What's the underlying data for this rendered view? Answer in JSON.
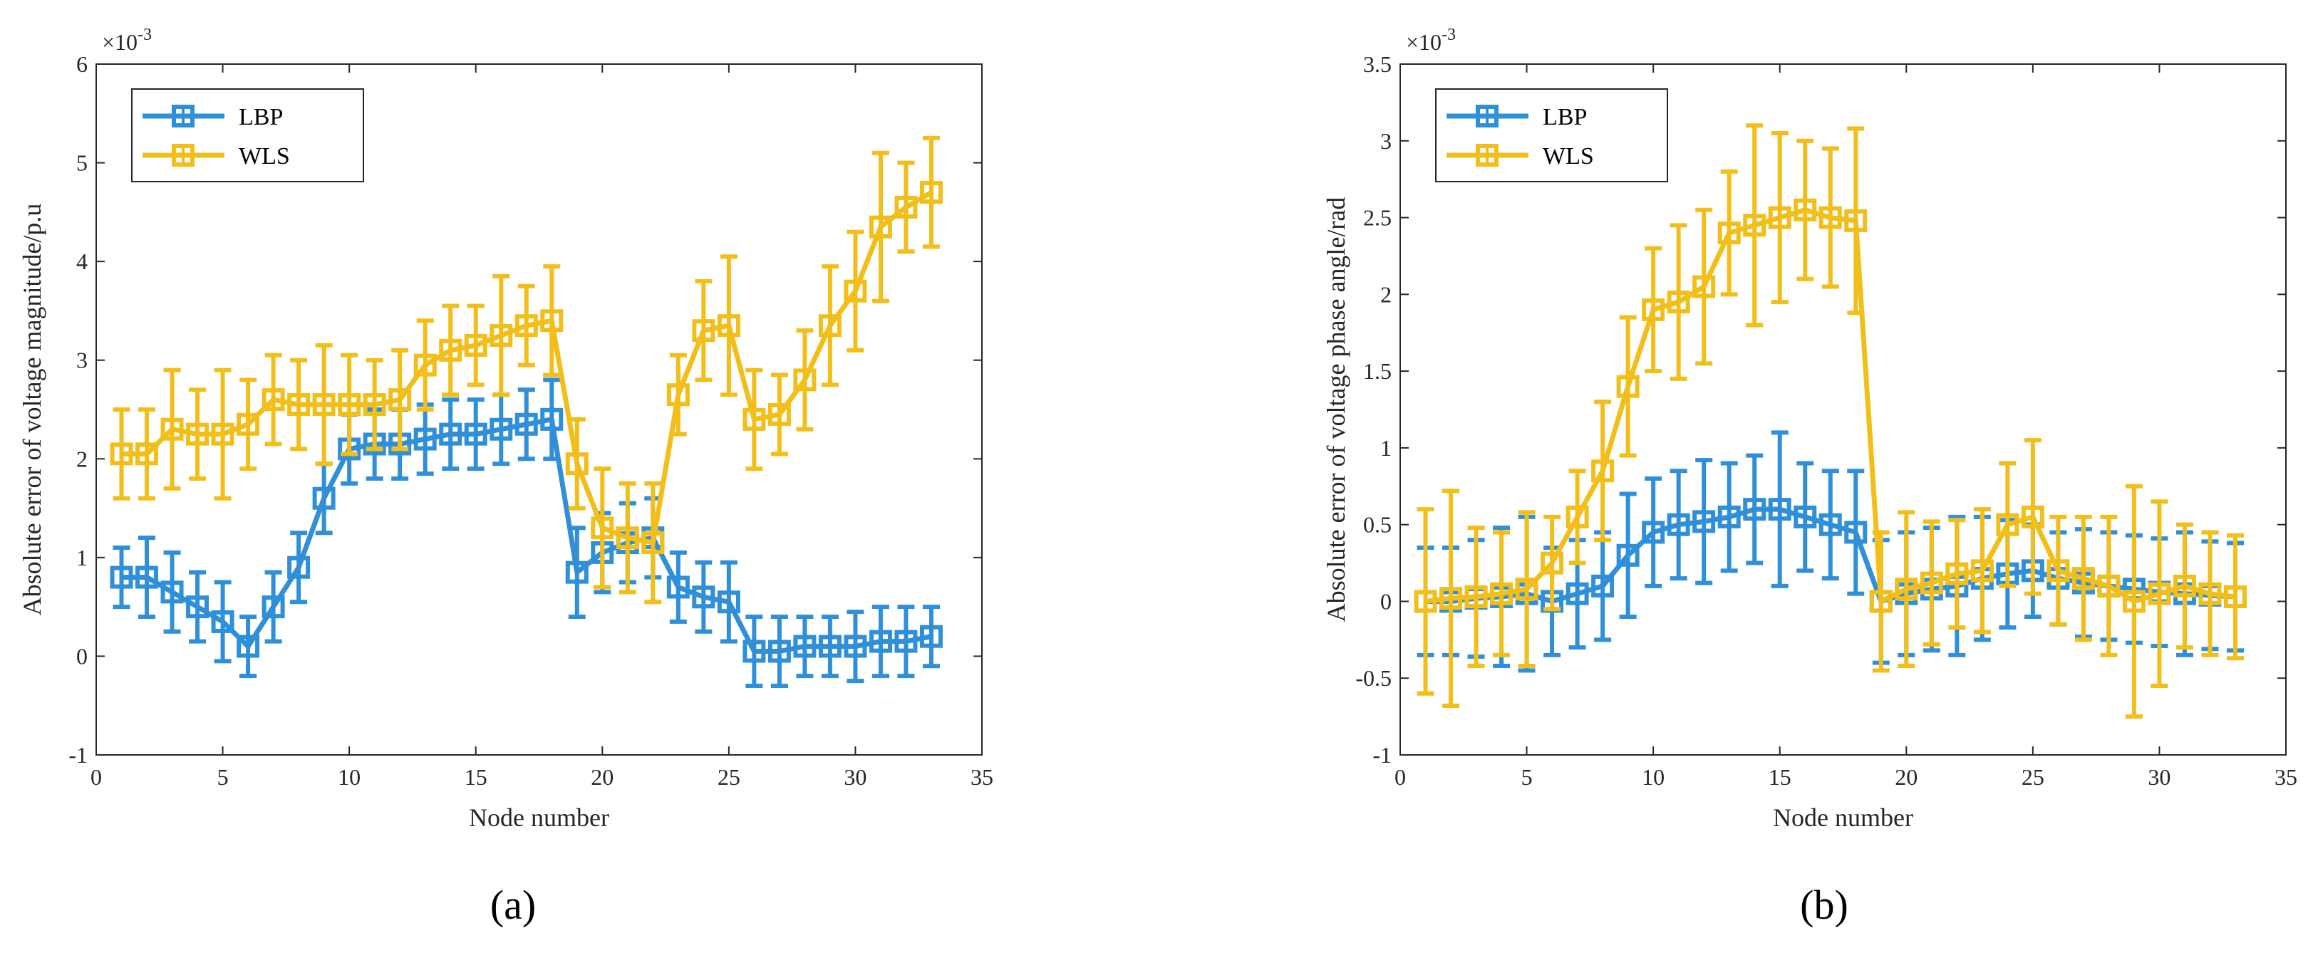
{
  "chart_data": [
    {
      "type": "line",
      "panel_caption": "a",
      "xlabel": "Node number",
      "ylabel": "Absolute error of voltage magnitude/p.u",
      "exponent_label": "×10^-3",
      "xlim": [
        0,
        35
      ],
      "ylim": [
        -1,
        6
      ],
      "xticks": [
        0,
        5,
        10,
        15,
        20,
        25,
        30,
        35
      ],
      "yticks": [
        -1,
        0,
        1,
        2,
        3,
        4,
        5,
        6
      ],
      "grid": false,
      "legend_position": "top-left",
      "x": [
        1,
        2,
        3,
        4,
        5,
        6,
        7,
        8,
        9,
        10,
        11,
        12,
        13,
        14,
        15,
        16,
        17,
        18,
        19,
        20,
        21,
        22,
        23,
        24,
        25,
        26,
        27,
        28,
        29,
        30,
        31,
        32,
        33
      ],
      "series": [
        {
          "name": "LBP",
          "color": "#2f8fd8",
          "values": [
            0.8,
            0.8,
            0.65,
            0.5,
            0.35,
            0.1,
            0.5,
            0.9,
            1.6,
            2.1,
            2.15,
            2.15,
            2.2,
            2.25,
            2.25,
            2.3,
            2.35,
            2.4,
            0.85,
            1.05,
            1.15,
            1.2,
            0.7,
            0.6,
            0.55,
            0.05,
            0.05,
            0.1,
            0.1,
            0.1,
            0.15,
            0.15,
            0.2
          ],
          "errors": [
            0.3,
            0.4,
            0.4,
            0.35,
            0.4,
            0.3,
            0.35,
            0.35,
            0.35,
            0.35,
            0.35,
            0.35,
            0.35,
            0.35,
            0.35,
            0.35,
            0.35,
            0.4,
            0.45,
            0.4,
            0.4,
            0.4,
            0.35,
            0.35,
            0.4,
            0.35,
            0.35,
            0.3,
            0.3,
            0.35,
            0.35,
            0.35,
            0.3
          ]
        },
        {
          "name": "WLS",
          "color": "#f2be1a",
          "values": [
            2.05,
            2.05,
            2.3,
            2.25,
            2.25,
            2.35,
            2.6,
            2.55,
            2.55,
            2.55,
            2.55,
            2.6,
            2.95,
            3.1,
            3.15,
            3.25,
            3.35,
            3.4,
            1.95,
            1.3,
            1.2,
            1.15,
            2.65,
            3.3,
            3.35,
            2.4,
            2.45,
            2.8,
            3.35,
            3.7,
            4.35,
            4.55,
            4.7
          ],
          "errors": [
            0.45,
            0.45,
            0.6,
            0.45,
            0.65,
            0.45,
            0.45,
            0.45,
            0.6,
            0.5,
            0.45,
            0.5,
            0.45,
            0.45,
            0.4,
            0.6,
            0.4,
            0.55,
            0.45,
            0.6,
            0.55,
            0.6,
            0.4,
            0.5,
            0.7,
            0.5,
            0.4,
            0.5,
            0.6,
            0.6,
            0.75,
            0.45,
            0.55
          ]
        }
      ]
    },
    {
      "type": "line",
      "panel_caption": "b",
      "xlabel": "Node number",
      "ylabel": "Absolute error of voltage phase angle/rad",
      "exponent_label": "×10^-3",
      "xlim": [
        0,
        35
      ],
      "ylim": [
        -1,
        3.5
      ],
      "xticks": [
        0,
        5,
        10,
        15,
        20,
        25,
        30,
        35
      ],
      "yticks": [
        -1,
        -0.5,
        0,
        0.5,
        1,
        1.5,
        2,
        2.5,
        3,
        3.5
      ],
      "grid": false,
      "legend_position": "top-left",
      "x": [
        1,
        2,
        3,
        4,
        5,
        6,
        7,
        8,
        9,
        10,
        11,
        12,
        13,
        14,
        15,
        16,
        17,
        18,
        19,
        20,
        21,
        22,
        23,
        24,
        25,
        26,
        27,
        28,
        29,
        30,
        31,
        32,
        33
      ],
      "series": [
        {
          "name": "LBP",
          "color": "#2f8fd8",
          "values": [
            0,
            0,
            0.02,
            0.03,
            0.05,
            0,
            0.05,
            0.1,
            0.3,
            0.45,
            0.5,
            0.52,
            0.55,
            0.6,
            0.6,
            0.55,
            0.5,
            0.45,
            0,
            0.05,
            0.08,
            0.1,
            0.15,
            0.18,
            0.2,
            0.15,
            0.12,
            0.1,
            0.08,
            0.06,
            0.05,
            0.04,
            0.03
          ],
          "errors": [
            0.35,
            0.35,
            0.38,
            0.45,
            0.5,
            0.35,
            0.35,
            0.35,
            0.4,
            0.35,
            0.35,
            0.4,
            0.35,
            0.35,
            0.5,
            0.35,
            0.35,
            0.4,
            0.4,
            0.4,
            0.4,
            0.45,
            0.4,
            0.35,
            0.3,
            0.3,
            0.35,
            0.35,
            0.35,
            0.35,
            0.4,
            0.35,
            0.35
          ]
        },
        {
          "name": "WLS",
          "color": "#f2be1a",
          "values": [
            0,
            0.02,
            0.03,
            0.05,
            0.08,
            0.25,
            0.55,
            0.85,
            1.4,
            1.9,
            1.95,
            2.05,
            2.4,
            2.45,
            2.5,
            2.55,
            2.5,
            2.48,
            0,
            0.08,
            0.12,
            0.18,
            0.2,
            0.5,
            0.55,
            0.2,
            0.15,
            0.1,
            0,
            0.05,
            0.1,
            0.05,
            0.03
          ],
          "errors": [
            0.6,
            0.7,
            0.45,
            0.4,
            0.5,
            0.3,
            0.3,
            0.45,
            0.45,
            0.4,
            0.5,
            0.5,
            0.4,
            0.65,
            0.55,
            0.45,
            0.45,
            0.6,
            0.45,
            0.5,
            0.4,
            0.35,
            0.4,
            0.4,
            0.5,
            0.35,
            0.4,
            0.45,
            0.75,
            0.6,
            0.4,
            0.4,
            0.4
          ]
        }
      ]
    }
  ],
  "captions": {
    "a": "(a)",
    "b": "(b)"
  },
  "exponent": {
    "base": "×10",
    "power": "-3"
  }
}
